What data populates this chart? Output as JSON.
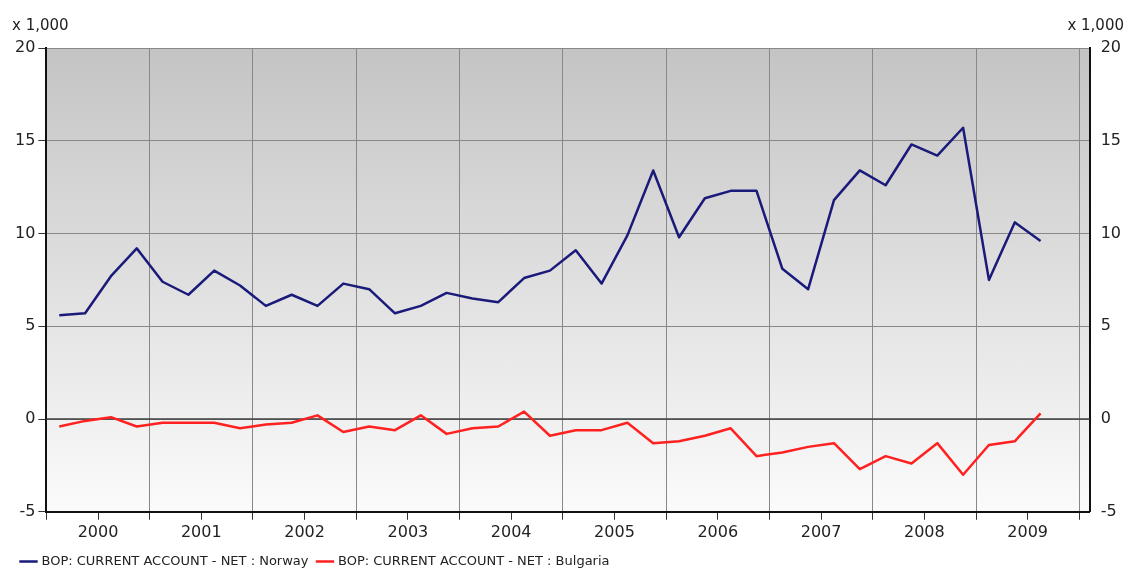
{
  "chart_data": {
    "type": "line",
    "x": [
      2000.125,
      2000.375,
      2000.625,
      2000.875,
      2001.125,
      2001.375,
      2001.625,
      2001.875,
      2002.125,
      2002.375,
      2002.625,
      2002.875,
      2003.125,
      2003.375,
      2003.625,
      2003.875,
      2004.125,
      2004.375,
      2004.625,
      2004.875,
      2005.125,
      2005.375,
      2005.625,
      2005.875,
      2006.125,
      2006.375,
      2006.625,
      2006.875,
      2007.125,
      2007.375,
      2007.625,
      2007.875,
      2008.125,
      2008.375,
      2008.625,
      2008.875,
      2009.125,
      2009.375,
      2009.625
    ],
    "series": [
      {
        "name": "BOP: CURRENT ACCOUNT - NET : Norway",
        "color": "#1a1a7a",
        "values": [
          5.6,
          5.7,
          7.7,
          9.2,
          7.4,
          6.7,
          8.0,
          7.2,
          6.1,
          6.7,
          6.1,
          7.3,
          7.0,
          5.7,
          6.1,
          6.8,
          6.5,
          6.3,
          7.6,
          8.0,
          9.1,
          7.3,
          9.9,
          13.4,
          9.8,
          11.9,
          12.3,
          12.3,
          8.1,
          7.0,
          11.8,
          13.4,
          12.6,
          14.8,
          14.2,
          15.7,
          7.5,
          10.6,
          9.6
        ]
      },
      {
        "name": "BOP: CURRENT ACCOUNT - NET : Bulgaria",
        "color": "#ff2020",
        "values": [
          -0.4,
          -0.1,
          0.1,
          -0.4,
          -0.2,
          -0.2,
          -0.2,
          -0.5,
          -0.3,
          -0.2,
          0.2,
          -0.7,
          -0.4,
          -0.6,
          0.2,
          -0.8,
          -0.5,
          -0.4,
          0.4,
          -0.9,
          -0.6,
          -0.6,
          -0.2,
          -1.3,
          -1.2,
          -0.9,
          -0.5,
          -2.0,
          -1.8,
          -1.5,
          -1.3,
          -2.7,
          -2.0,
          -2.4,
          -1.3,
          -3.0,
          -1.4,
          -1.2,
          0.3
        ]
      }
    ],
    "ylabel": "x 1,000",
    "y2label": "x 1,000",
    "ylim": [
      -5,
      20
    ],
    "yticks": [
      -5,
      0,
      5,
      10,
      15,
      20
    ],
    "y2lim": [
      -5,
      20
    ],
    "y2ticks": [
      -5,
      0,
      5,
      10,
      15,
      20
    ],
    "xlim": [
      2000,
      2010.1
    ],
    "xticks": [
      {
        "value": 2000,
        "label": null
      },
      {
        "value": 2000.5,
        "label": "2000"
      },
      {
        "value": 2001,
        "label": null
      },
      {
        "value": 2001.5,
        "label": "2001"
      },
      {
        "value": 2002,
        "label": null
      },
      {
        "value": 2002.5,
        "label": "2002"
      },
      {
        "value": 2003,
        "label": null
      },
      {
        "value": 2003.5,
        "label": "2003"
      },
      {
        "value": 2004,
        "label": null
      },
      {
        "value": 2004.5,
        "label": "2004"
      },
      {
        "value": 2005,
        "label": null
      },
      {
        "value": 2005.5,
        "label": "2005"
      },
      {
        "value": 2006,
        "label": null
      },
      {
        "value": 2006.5,
        "label": "2006"
      },
      {
        "value": 2007,
        "label": null
      },
      {
        "value": 2007.5,
        "label": "2007"
      },
      {
        "value": 2008,
        "label": null
      },
      {
        "value": 2008.5,
        "label": "2008"
      },
      {
        "value": 2009,
        "label": null
      },
      {
        "value": 2009.5,
        "label": "2009"
      },
      {
        "value": 2010,
        "label": null
      }
    ],
    "ref_lines": [
      {
        "axis": "y",
        "value": 0,
        "color": "#404040"
      }
    ],
    "grid": true,
    "legend": "bottom left",
    "marker": "none",
    "line_style": "solid"
  }
}
